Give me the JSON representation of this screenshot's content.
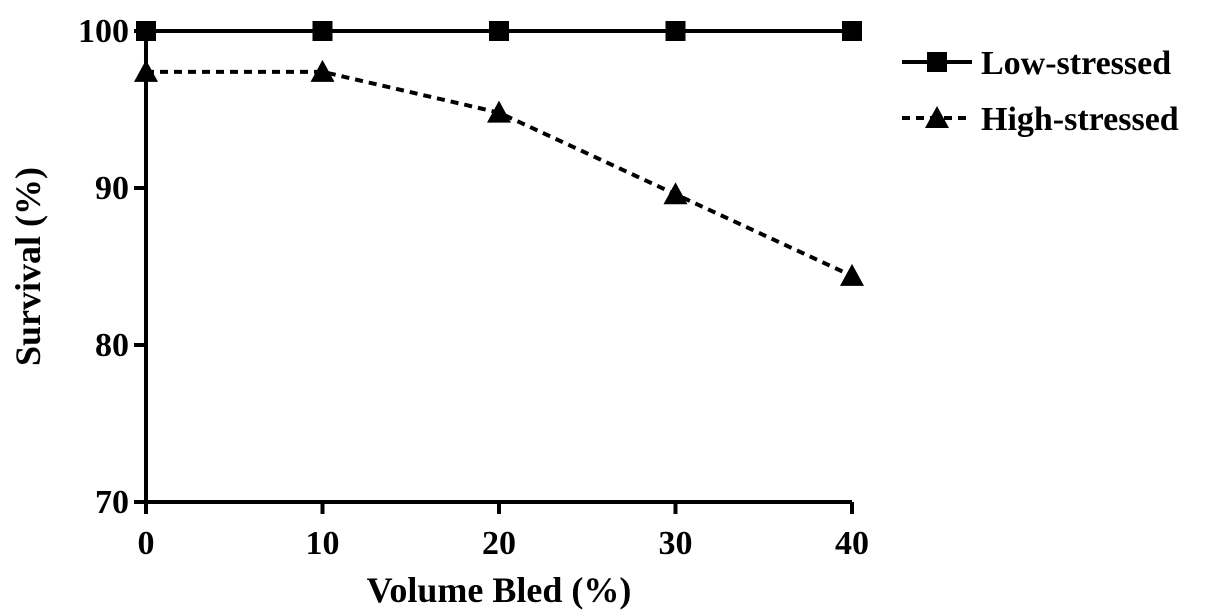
{
  "chart_data": {
    "type": "line",
    "title": "",
    "xlabel": "Volume Bled (%)",
    "ylabel": "Survival (%)",
    "x": [
      0,
      10,
      20,
      30,
      40
    ],
    "xlim": [
      0,
      40
    ],
    "ylim": [
      70,
      100
    ],
    "xticks": [
      "0",
      "10",
      "20",
      "30",
      "40"
    ],
    "yticks": [
      "70",
      "80",
      "90",
      "100"
    ],
    "grid": false,
    "legend_position": "top-right",
    "series": [
      {
        "name": "Low-stressed",
        "values": [
          100,
          100,
          100,
          100,
          100
        ],
        "marker": "square",
        "line_style": "solid",
        "color": "#000000"
      },
      {
        "name": "High-stressed",
        "values": [
          97.4,
          97.4,
          94.8,
          89.6,
          84.4
        ],
        "marker": "triangle",
        "line_style": "dashed",
        "color": "#000000"
      }
    ]
  }
}
